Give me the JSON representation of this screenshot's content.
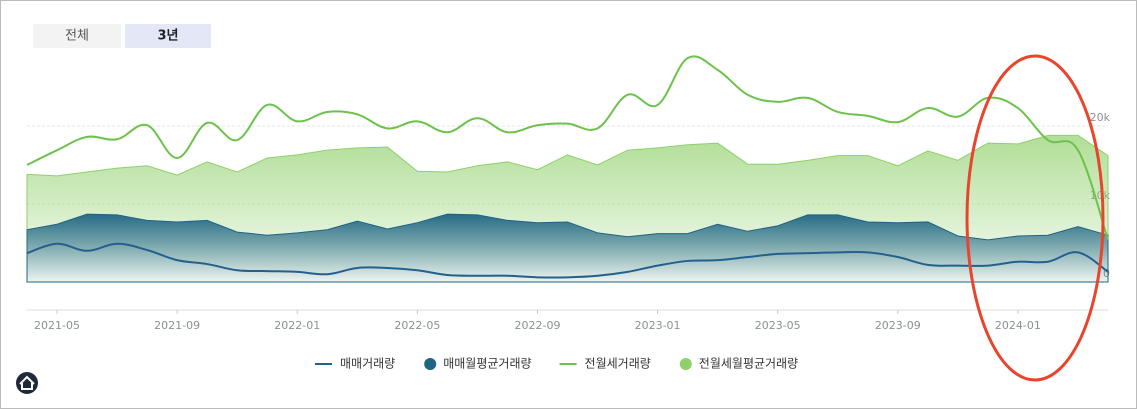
{
  "tabs": [
    "전체",
    "3년"
  ],
  "chart_data": {
    "type": "line",
    "x": [
      "2021-04",
      "2021-05",
      "2021-06",
      "2021-07",
      "2021-08",
      "2021-09",
      "2021-10",
      "2021-11",
      "2021-12",
      "2022-01",
      "2022-02",
      "2022-03",
      "2022-04",
      "2022-05",
      "2022-06",
      "2022-07",
      "2022-08",
      "2022-09",
      "2022-10",
      "2022-11",
      "2022-12",
      "2023-01",
      "2023-02",
      "2023-03",
      "2023-04",
      "2023-05",
      "2023-06",
      "2023-07",
      "2023-08",
      "2023-09",
      "2023-10",
      "2023-11",
      "2023-12",
      "2024-01",
      "2024-02",
      "2024-03",
      "2024-04"
    ],
    "xticks": [
      "2021-05",
      "2021-09",
      "2022-01",
      "2022-05",
      "2022-09",
      "2023-01",
      "2023-05",
      "2023-09",
      "2024-01"
    ],
    "ylim": [
      0,
      30000
    ],
    "yticks": [
      0,
      {
        "value": 10000,
        "label": "10k"
      },
      {
        "value": 20000,
        "label": "20k"
      }
    ],
    "grid": true,
    "series": [
      {
        "name": "매매거래량",
        "type": "line",
        "color": "#24608e",
        "values": [
          3700,
          4900,
          4000,
          4900,
          4100,
          2800,
          2300,
          1500,
          1400,
          1300,
          1000,
          1800,
          1800,
          1500,
          900,
          800,
          800,
          600,
          600,
          800,
          1300,
          2100,
          2700,
          2800,
          3200,
          3600,
          3700,
          3800,
          3800,
          3200,
          2200,
          2100,
          2100,
          2600,
          2600,
          3800,
          1300
        ]
      },
      {
        "name": "매매월평균거래량",
        "type": "area",
        "color": "#1f6584",
        "values": [
          6700,
          7400,
          8700,
          8600,
          7900,
          7700,
          7900,
          6400,
          6000,
          6300,
          6700,
          7800,
          6800,
          7600,
          8700,
          8600,
          7900,
          7600,
          7700,
          6300,
          5800,
          6200,
          6200,
          7400,
          6500,
          7200,
          8600,
          8600,
          7700,
          7600,
          7700,
          5900,
          5400,
          5900,
          6000,
          7100,
          6000
        ]
      },
      {
        "name": "전월세거래량",
        "type": "line",
        "color": "#6cc24a",
        "values": [
          15000,
          16900,
          18600,
          18300,
          20100,
          15900,
          20400,
          18200,
          22700,
          20600,
          21800,
          21500,
          19700,
          20600,
          19200,
          21000,
          19200,
          20100,
          20300,
          19700,
          24000,
          22700,
          28700,
          27200,
          24000,
          23100,
          23600,
          21800,
          21300,
          20500,
          22300,
          21200,
          23600,
          22300,
          18200,
          16900,
          5400
        ]
      },
      {
        "name": "전월세월평균거래량",
        "type": "area",
        "color": "#8fd06a",
        "values": [
          13800,
          13600,
          14100,
          14600,
          14900,
          13700,
          15400,
          14100,
          15900,
          16300,
          16900,
          17200,
          17300,
          14200,
          14100,
          14900,
          15400,
          14400,
          16300,
          15000,
          16900,
          17200,
          17600,
          17800,
          15100,
          15100,
          15600,
          16200,
          16200,
          14900,
          16800,
          15600,
          17800,
          17700,
          18800,
          18800,
          16200
        ]
      }
    ]
  }
}
